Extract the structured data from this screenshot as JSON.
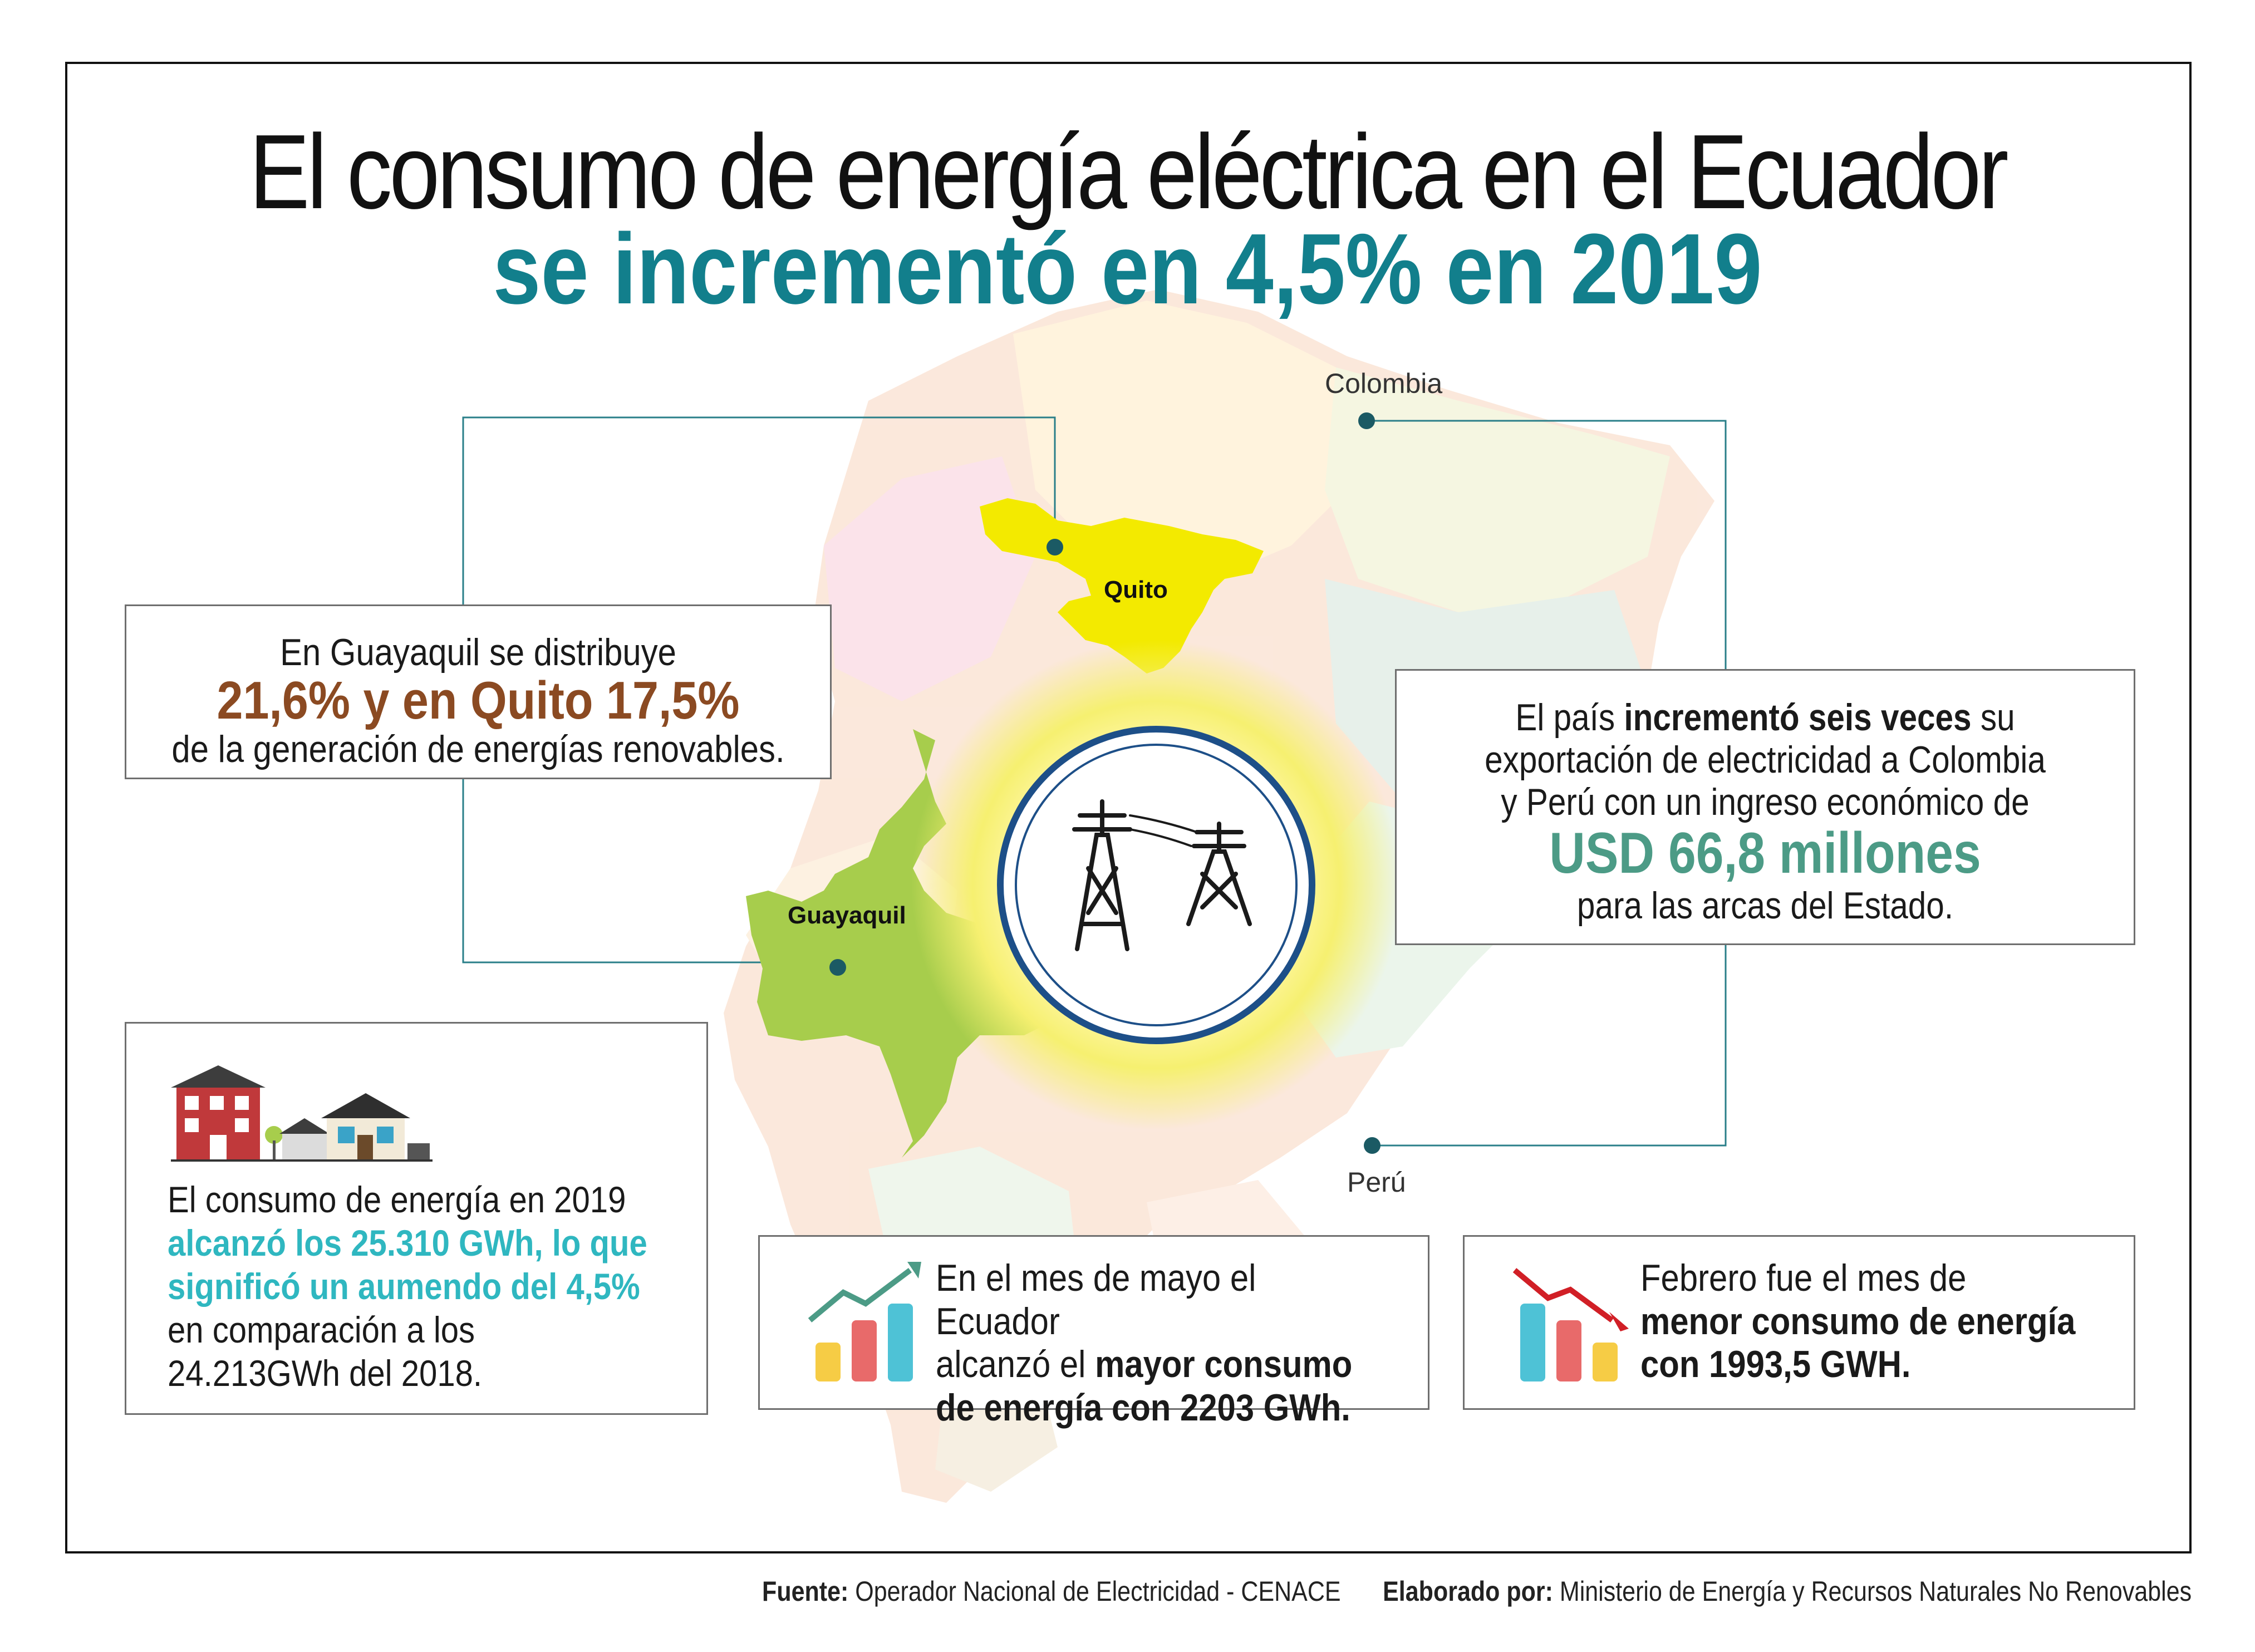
{
  "title": {
    "line1": "El consumo de energía eléctrica en el Ecuador",
    "line2": "se incrementó en 4,5% en 2019"
  },
  "map": {
    "label_colombia": "Colombia",
    "label_peru": "Perú",
    "city_quito": "Quito",
    "city_guayaquil": "Guayaquil",
    "icon": "power-tower-icon"
  },
  "renewables_card": {
    "line1": "En Guayaquil se distribuye",
    "highlight": "21,6% y en Quito 17,5%",
    "line3": "de la generación de energías renovables."
  },
  "export_card": {
    "line1_pre": "El país ",
    "line1_bold": "incrementó seis veces",
    "line1_post": " su",
    "line2": "exportación de electricidad a Colombia",
    "line3": "y Perú con un ingreso económico de",
    "highlight": "USD 66,8 millones",
    "line5": "para las arcas del Estado."
  },
  "consumption_card": {
    "icon": "houses-icon",
    "line1": "El consumo de energía en 2019",
    "highlight": "alcanzó los 25.310 GWh, lo que significó un aumendo del 4,5%",
    "rest": " en comparación a los 24.213GWh del 2018."
  },
  "may_card": {
    "icon": "chart-up-icon",
    "line1": "En el mes de mayo el Ecuador",
    "line2_pre": "alcanzó el ",
    "line2_bold": "mayor consumo",
    "line3_bold": "de energía con 2203 GWh."
  },
  "feb_card": {
    "icon": "chart-down-icon",
    "line1": "Febrero fue el mes de",
    "line2_bold": "menor consumo de energía",
    "line3_bold": "con 1993,5 GWH."
  },
  "footer": {
    "source_label": "Fuente:",
    "source_text": " Operador Nacional de Electricidad - CENACE",
    "made_label": "Elaborado por:",
    "made_text": " Ministerio de Energía y Recursos Naturales No Renovables"
  },
  "colors": {
    "teal": "#127f8c",
    "brown": "#8b4a22",
    "green_text": "#4c9b86",
    "cyan_text": "#2fb7c0",
    "quito_yellow": "#f3ea00",
    "guayaquil_green": "#a7cd4c"
  }
}
